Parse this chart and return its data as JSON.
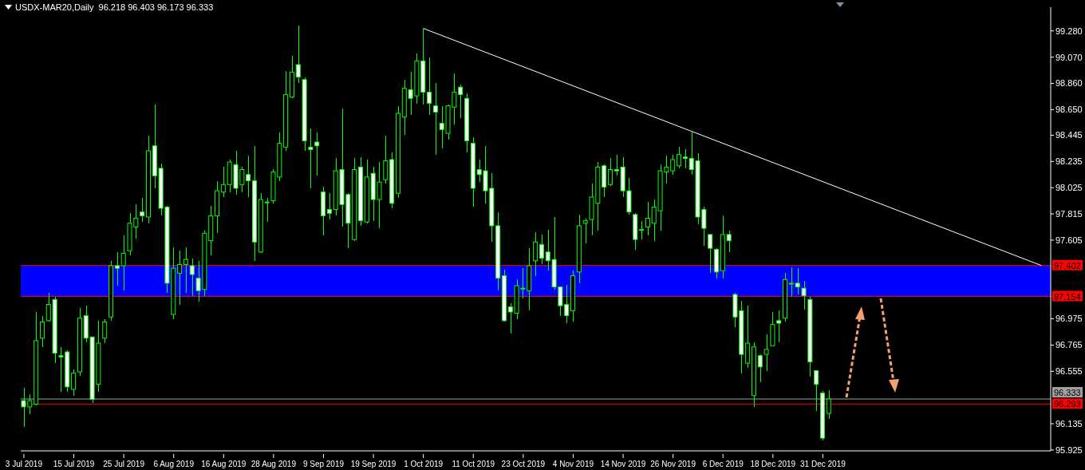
{
  "chart_data": {
    "type": "candlestick",
    "title": "USDX-MAR20,Daily  96.218 96.403 96.173 96.333",
    "color": "#00ff00",
    "categories": [
      "3 Jul 2019",
      null,
      null,
      null,
      null,
      null,
      null,
      null,
      "15 Jul 2019",
      null,
      null,
      null,
      null,
      null,
      null,
      null,
      "25 Jul 2019",
      null,
      null,
      null,
      null,
      null,
      null,
      null,
      "6 Aug 2019",
      null,
      null,
      null,
      null,
      null,
      null,
      null,
      "16 Aug 2019",
      null,
      null,
      null,
      null,
      null,
      null,
      null,
      "28 Aug 2019",
      null,
      null,
      null,
      null,
      null,
      null,
      null,
      "9 Sep 2019",
      null,
      null,
      null,
      null,
      null,
      null,
      null,
      "19 Sep 2019",
      null,
      null,
      null,
      null,
      null,
      null,
      null,
      "1 Oct 2019",
      null,
      null,
      null,
      null,
      null,
      null,
      null,
      "11 Oct 2019",
      null,
      null,
      null,
      null,
      null,
      null,
      null,
      "23 Oct 2019",
      null,
      null,
      null,
      null,
      null,
      null,
      null,
      "4 Nov 2019",
      null,
      null,
      null,
      null,
      null,
      null,
      null,
      "14 Nov 2019",
      null,
      null,
      null,
      null,
      null,
      null,
      null,
      "26 Nov 2019",
      null,
      null,
      null,
      null,
      null,
      null,
      null,
      "6 Dec 2019",
      null,
      null,
      null,
      null,
      null,
      null,
      null,
      "18 Dec 2019",
      null,
      null,
      null,
      null,
      null,
      null,
      null,
      "31 Dec 2019",
      null,
      null,
      null,
      null,
      null,
      null,
      null,
      null,
      null,
      null,
      null,
      null,
      null,
      null,
      null,
      null,
      null,
      null,
      null,
      null,
      null,
      null,
      null,
      null,
      null,
      null,
      null,
      null,
      null,
      null,
      null,
      null,
      null,
      null,
      null,
      null
    ],
    "ohlc": [
      [
        96.32,
        96.42,
        96.11,
        96.27
      ],
      [
        96.27,
        96.37,
        96.21,
        96.32
      ],
      [
        96.29,
        97.03,
        96.28,
        96.8
      ],
      [
        96.82,
        97.0,
        96.75,
        96.95
      ],
      [
        96.96,
        97.18,
        96.95,
        97.09
      ],
      [
        97.13,
        97.15,
        96.62,
        96.7
      ],
      [
        96.68,
        96.75,
        96.39,
        96.67
      ],
      [
        96.71,
        96.72,
        96.39,
        96.43
      ],
      [
        96.41,
        96.57,
        96.36,
        96.54
      ],
      [
        96.55,
        97.06,
        96.52,
        96.98
      ],
      [
        97.0,
        97.08,
        96.79,
        96.82
      ],
      [
        96.83,
        96.83,
        96.3,
        96.33
      ],
      [
        96.45,
        96.96,
        96.39,
        96.78
      ],
      [
        96.82,
        96.97,
        96.78,
        96.95
      ],
      [
        96.99,
        97.44,
        96.96,
        97.4
      ],
      [
        97.4,
        97.51,
        97.24,
        97.38
      ],
      [
        97.4,
        97.64,
        97.2,
        97.5
      ],
      [
        97.52,
        97.82,
        97.48,
        97.74
      ],
      [
        97.71,
        97.89,
        97.62,
        97.78
      ],
      [
        97.83,
        97.94,
        97.75,
        97.8
      ],
      [
        97.79,
        98.44,
        97.74,
        98.32
      ],
      [
        98.36,
        98.69,
        98.02,
        98.12
      ],
      [
        98.18,
        98.22,
        97.8,
        97.86
      ],
      [
        97.87,
        97.88,
        97.18,
        97.26
      ],
      [
        97.01,
        97.55,
        96.97,
        97.38
      ],
      [
        97.34,
        97.52,
        97.09,
        97.41
      ],
      [
        97.41,
        97.55,
        97.18,
        97.45
      ],
      [
        97.4,
        97.46,
        97.16,
        97.33
      ],
      [
        97.3,
        97.44,
        97.11,
        97.2
      ],
      [
        97.21,
        97.68,
        97.16,
        97.66
      ],
      [
        97.6,
        97.88,
        97.48,
        97.8
      ],
      [
        97.8,
        98.08,
        97.66,
        98.0
      ],
      [
        97.99,
        98.19,
        97.95,
        98.05
      ],
      [
        98.05,
        98.25,
        97.99,
        98.23
      ],
      [
        98.21,
        98.32,
        97.97,
        98.02
      ],
      [
        98.05,
        98.19,
        97.99,
        98.17
      ],
      [
        98.13,
        98.28,
        97.95,
        98.08
      ],
      [
        98.08,
        98.36,
        97.44,
        97.59
      ],
      [
        97.51,
        97.98,
        97.5,
        97.93
      ],
      [
        97.91,
        97.94,
        97.75,
        97.91
      ],
      [
        97.92,
        98.17,
        97.9,
        98.15
      ],
      [
        98.11,
        98.47,
        98.08,
        98.38
      ],
      [
        98.35,
        98.96,
        98.32,
        98.77
      ],
      [
        98.75,
        99.08,
        98.74,
        98.95
      ],
      [
        99.01,
        99.32,
        98.86,
        98.91
      ],
      [
        98.89,
        98.91,
        98.32,
        98.4
      ],
      [
        98.35,
        98.5,
        98.02,
        98.33
      ],
      [
        98.39,
        98.47,
        98.12,
        98.36
      ],
      [
        97.99,
        98.03,
        97.64,
        97.8
      ],
      [
        97.85,
        97.98,
        97.77,
        97.82
      ],
      [
        97.85,
        98.26,
        97.8,
        98.16
      ],
      [
        98.17,
        98.66,
        97.71,
        97.89
      ],
      [
        97.97,
        97.98,
        97.54,
        97.74
      ],
      [
        97.61,
        98.26,
        97.6,
        98.17
      ],
      [
        98.19,
        98.27,
        97.72,
        97.76
      ],
      [
        97.75,
        98.25,
        97.74,
        98.11
      ],
      [
        98.14,
        98.19,
        97.76,
        97.93
      ],
      [
        97.93,
        98.23,
        97.7,
        98.07
      ],
      [
        98.09,
        98.44,
        98.06,
        98.24
      ],
      [
        98.25,
        98.31,
        97.86,
        97.9
      ],
      [
        97.98,
        98.68,
        97.94,
        98.62
      ],
      [
        98.59,
        98.89,
        98.45,
        98.82
      ],
      [
        98.81,
        98.95,
        98.61,
        98.74
      ],
      [
        98.76,
        99.1,
        98.7,
        99.04
      ],
      [
        99.04,
        99.3,
        98.69,
        98.79
      ],
      [
        98.79,
        99.07,
        98.61,
        98.7
      ],
      [
        98.68,
        98.86,
        98.29,
        98.63
      ],
      [
        98.54,
        98.68,
        98.34,
        98.49
      ],
      [
        98.46,
        98.69,
        98.41,
        98.68
      ],
      [
        98.67,
        98.94,
        98.53,
        98.79
      ],
      [
        98.83,
        98.85,
        98.58,
        98.77
      ],
      [
        98.74,
        98.78,
        98.31,
        98.4
      ],
      [
        98.38,
        98.43,
        97.87,
        98.02
      ],
      [
        98.17,
        98.25,
        98.07,
        98.13
      ],
      [
        98.16,
        98.36,
        97.9,
        98.0
      ],
      [
        98.02,
        98.14,
        97.59,
        97.72
      ],
      [
        97.72,
        97.83,
        97.2,
        97.3
      ],
      [
        97.32,
        97.37,
        96.95,
        96.96
      ],
      [
        97.07,
        97.1,
        96.86,
        97.03
      ],
      [
        97.02,
        97.29,
        96.97,
        97.24
      ],
      [
        97.22,
        97.38,
        97.14,
        97.22
      ],
      [
        97.2,
        97.54,
        97.04,
        97.4
      ],
      [
        97.44,
        97.67,
        97.32,
        97.59
      ],
      [
        97.57,
        97.65,
        97.41,
        97.46
      ],
      [
        97.51,
        97.69,
        97.36,
        97.44
      ],
      [
        97.45,
        97.79,
        97.21,
        97.23
      ],
      [
        97.23,
        97.23,
        97.0,
        97.08
      ],
      [
        97.09,
        97.25,
        96.94,
        97.0
      ],
      [
        97.04,
        97.36,
        96.95,
        97.32
      ],
      [
        97.35,
        97.81,
        97.26,
        97.72
      ],
      [
        97.74,
        97.78,
        97.58,
        97.76
      ],
      [
        97.77,
        98.06,
        97.64,
        97.95
      ],
      [
        97.9,
        98.23,
        97.68,
        98.19
      ],
      [
        98.2,
        98.21,
        97.95,
        98.03
      ],
      [
        98.05,
        98.26,
        98.04,
        98.17
      ],
      [
        98.17,
        98.29,
        98.12,
        98.16
      ],
      [
        98.19,
        98.27,
        97.95,
        98.0
      ],
      [
        98.0,
        98.1,
        97.81,
        97.83
      ],
      [
        97.81,
        97.82,
        97.53,
        97.61
      ],
      [
        97.69,
        97.76,
        97.61,
        97.69
      ],
      [
        97.71,
        97.91,
        97.64,
        97.78
      ],
      [
        97.74,
        97.93,
        97.6,
        97.87
      ],
      [
        97.84,
        98.21,
        97.68,
        98.16
      ],
      [
        98.15,
        98.28,
        98.06,
        98.19
      ],
      [
        98.16,
        98.29,
        98.13,
        98.25
      ],
      [
        98.2,
        98.35,
        98.18,
        98.29
      ],
      [
        98.27,
        98.33,
        98.18,
        98.26
      ],
      [
        98.26,
        98.48,
        98.13,
        98.17
      ],
      [
        98.24,
        98.3,
        97.73,
        97.79
      ],
      [
        97.85,
        97.87,
        97.56,
        97.7
      ],
      [
        97.65,
        97.65,
        97.34,
        97.54
      ],
      [
        97.53,
        97.54,
        97.3,
        97.35
      ],
      [
        97.36,
        97.8,
        97.3,
        97.65
      ],
      [
        97.65,
        97.68,
        97.51,
        97.6
      ],
      [
        97.17,
        97.18,
        96.91,
        96.99
      ],
      [
        97.04,
        97.12,
        96.54,
        96.69
      ],
      [
        96.62,
        97.08,
        96.58,
        96.78
      ],
      [
        96.36,
        96.79,
        96.27,
        96.75
      ],
      [
        96.68,
        96.69,
        96.47,
        96.59
      ],
      [
        96.69,
        96.85,
        96.56,
        96.73
      ],
      [
        96.76,
        97.03,
        96.76,
        96.93
      ],
      [
        96.96,
        97.04,
        96.79,
        96.94
      ],
      [
        96.98,
        97.34,
        96.95,
        97.29
      ],
      [
        97.26,
        97.39,
        97.15,
        97.26
      ],
      [
        97.26,
        97.38,
        97.17,
        97.23
      ],
      [
        97.22,
        97.28,
        97.05,
        97.16
      ],
      [
        97.13,
        97.15,
        96.51,
        96.63
      ],
      [
        96.56,
        96.56,
        96.24,
        96.45
      ],
      [
        96.38,
        96.4,
        96.0,
        96.02
      ],
      [
        96.218,
        96.403,
        96.173,
        96.333
      ],
      null,
      null,
      null,
      null,
      null,
      null,
      null,
      null,
      null,
      null,
      null,
      null,
      null,
      null,
      null,
      null,
      null,
      null,
      null,
      null,
      null,
      null,
      null,
      null,
      null,
      null,
      null,
      null,
      null,
      null,
      null,
      null,
      null,
      null,
      null
    ],
    "series": [
      {
        "type": "line",
        "color": "#ffffff",
        "values": [
          null,
          null,
          null,
          null,
          null,
          null,
          null,
          null,
          null,
          null,
          null,
          null,
          null,
          null,
          null,
          null,
          null,
          null,
          null,
          null,
          null,
          null,
          null,
          null,
          null,
          null,
          null,
          null,
          null,
          null,
          null,
          null,
          null,
          null,
          null,
          null,
          null,
          null,
          null,
          null,
          null,
          null,
          null,
          null,
          null,
          null,
          null,
          null,
          null,
          null,
          null,
          null,
          null,
          null,
          null,
          null,
          null,
          null,
          null,
          null,
          null,
          null,
          null,
          null,
          99.3,
          null,
          null,
          null,
          null,
          null,
          null,
          null,
          null,
          null,
          null,
          null,
          null,
          null,
          null,
          null,
          null,
          null,
          null,
          null,
          null,
          null,
          null,
          null,
          null,
          null,
          null,
          null,
          null,
          null,
          null,
          null,
          null,
          null,
          null,
          null,
          null,
          null,
          null,
          null,
          null,
          null,
          null,
          null,
          null,
          null,
          null,
          null,
          null,
          null,
          null,
          null,
          null,
          null,
          null,
          null,
          null,
          null,
          null,
          null,
          null,
          null,
          null,
          null,
          null,
          null,
          null,
          null,
          null,
          null,
          null,
          null,
          null,
          null,
          null,
          null,
          null,
          null,
          null,
          null,
          null,
          null,
          null,
          null,
          null,
          null,
          null,
          null,
          null,
          null,
          null,
          null,
          null,
          null,
          null,
          null,
          null,
          null,
          null,
          97.402,
          null
        ]
      }
    ],
    "ylim": [
      95.918,
      99.47
    ],
    "yticks": [
      {
        "value": 99.28,
        "label": "99.280"
      },
      {
        "value": 99.07,
        "label": "99.070"
      },
      {
        "value": 98.86,
        "label": "98.860"
      },
      {
        "value": 98.65,
        "label": "98.650"
      },
      98.445,
      98.235,
      98.025,
      97.815,
      97.605,
      96.975,
      96.765,
      96.555,
      96.135,
      95.925
    ],
    "ref_lines": [
      {
        "axis": "y",
        "value": 97.402,
        "label": "97.402",
        "color": "#ff0000"
      },
      {
        "axis": "y",
        "value": 97.154,
        "label": "97.154",
        "color": "#ff0000"
      },
      {
        "axis": "y",
        "value": 96.333,
        "label": "96.333",
        "color": "#a0a0a0"
      },
      {
        "axis": "y",
        "value": 96.293,
        "label": "96.293",
        "color": "#ff0000"
      }
    ],
    "bands": [
      {
        "axis": "y",
        "from": 97.154,
        "to": 97.402,
        "color": "#0000ff"
      }
    ],
    "grid": false,
    "legend": false
  }
}
